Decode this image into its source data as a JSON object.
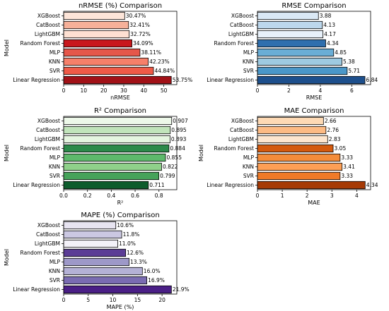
{
  "chart_data": [
    {
      "type": "bar",
      "orientation": "horizontal",
      "title": "nRMSE (%) Comparison",
      "xlabel": "nRMSE",
      "ylabel": "Model",
      "categories": [
        "XGBoost",
        "CatBoost",
        "LightGBM",
        "Random Forest",
        "MLP",
        "KNN",
        "SVR",
        "Linear Regression"
      ],
      "values": [
        30.47,
        32.41,
        32.72,
        34.09,
        38.11,
        42.23,
        44.84,
        53.75
      ],
      "value_labels": [
        "30.47%",
        "32.41%",
        "32.72%",
        "34.09%",
        "38.11%",
        "42.23%",
        "44.84%",
        "53.75%"
      ],
      "colors": [
        "#fde5d9",
        "#f6b099",
        "#fee0d2",
        "#c8181d",
        "#e5574a",
        "#f6806a",
        "#ef5a47",
        "#a11117"
      ],
      "xlim": [
        0,
        56.5
      ],
      "xticks": [
        0,
        10,
        20,
        30,
        40,
        50
      ],
      "xtick_labels": [
        "0",
        "10",
        "20",
        "30",
        "40",
        "50"
      ]
    },
    {
      "type": "bar",
      "orientation": "horizontal",
      "title": "RMSE Comparison",
      "xlabel": "RMSE",
      "ylabel": "",
      "categories": [
        "XGBoost",
        "CatBoost",
        "LightGBM",
        "Random Forest",
        "MLP",
        "KNN",
        "SVR",
        "Linear Regression"
      ],
      "values": [
        3.88,
        4.13,
        4.17,
        4.34,
        4.85,
        5.38,
        5.71,
        6.84
      ],
      "value_labels": [
        "3.88",
        "4.13",
        "4.17",
        "4.34",
        "4.85",
        "5.38",
        "5.71",
        "6.84"
      ],
      "colors": [
        "#dae8f5",
        "#bcd7ec",
        "#e8f1fa",
        "#2f6fae",
        "#6aaed6",
        "#9ecae1",
        "#4a97c9",
        "#1d4f8c"
      ],
      "xlim": [
        0,
        7.2
      ],
      "xticks": [
        0,
        2,
        4,
        6
      ],
      "xtick_labels": [
        "0",
        "2",
        "4",
        "6"
      ]
    },
    {
      "type": "bar",
      "orientation": "horizontal",
      "title": "R² Comparison",
      "xlabel": "R²",
      "ylabel": "Model",
      "categories": [
        "XGBoost",
        "CatBoost",
        "LightGBM",
        "Random Forest",
        "MLP",
        "KNN",
        "SVR",
        "Linear Regression"
      ],
      "values": [
        0.907,
        0.895,
        0.893,
        0.884,
        0.855,
        0.822,
        0.799,
        0.711
      ],
      "value_labels": [
        "0.907",
        "0.895",
        "0.893",
        "0.884",
        "0.855",
        "0.822",
        "0.799",
        "0.711"
      ],
      "colors": [
        "#edf8e9",
        "#c1e4bb",
        "#e5f5e0",
        "#2c8a4a",
        "#5db96b",
        "#8fd08a",
        "#46a35a",
        "#0d5c2c"
      ],
      "xlim": [
        0,
        0.95
      ],
      "xticks": [
        0,
        0.2,
        0.4,
        0.6,
        0.8
      ],
      "xtick_labels": [
        "0.0",
        "0.2",
        "0.4",
        "0.6",
        "0.8"
      ]
    },
    {
      "type": "bar",
      "orientation": "horizontal",
      "title": "MAE Comparison",
      "xlabel": "MAE",
      "ylabel": "Model",
      "categories": [
        "XGBoost",
        "CatBoost",
        "LightGBM",
        "Random Forest",
        "MLP",
        "KNN",
        "SVR",
        "Linear Regression"
      ],
      "values": [
        2.66,
        2.76,
        2.83,
        3.05,
        3.33,
        3.41,
        3.33,
        4.34
      ],
      "value_labels": [
        "2.66",
        "2.76",
        "2.83",
        "3.05",
        "3.33",
        "3.41",
        "3.33",
        "4.34"
      ],
      "colors": [
        "#fdd9b4",
        "#fdbb84",
        "#fee6ce",
        "#d45a0e",
        "#f48c3a",
        "#fd9f55",
        "#f07a27",
        "#a63a05"
      ],
      "xlim": [
        0,
        4.56
      ],
      "xticks": [
        0,
        1,
        2,
        3,
        4
      ],
      "xtick_labels": [
        "0",
        "1",
        "2",
        "3",
        "4"
      ]
    },
    {
      "type": "bar",
      "orientation": "horizontal",
      "title": "MAPE (%) Comparison",
      "xlabel": "MAPE (%)",
      "ylabel": "Model",
      "categories": [
        "XGBoost",
        "CatBoost",
        "LightGBM",
        "Random Forest",
        "MLP",
        "KNN",
        "SVR",
        "Linear Regression"
      ],
      "values": [
        10.6,
        11.8,
        11.0,
        12.6,
        13.3,
        16.0,
        16.9,
        21.9
      ],
      "value_labels": [
        "10.6%",
        "11.8%",
        "11.0%",
        "12.6%",
        "13.3%",
        "16.0%",
        "16.9%",
        "21.9%"
      ],
      "colors": [
        "#e7e4f1",
        "#cbc8e2",
        "#f3f1f8",
        "#5b3d96",
        "#9d98c8",
        "#b4b1d6",
        "#7a6cb2",
        "#4a1f86"
      ],
      "xlim": [
        0,
        23.0
      ],
      "xticks": [
        0,
        5,
        10,
        15,
        20
      ],
      "xtick_labels": [
        "0",
        "5",
        "10",
        "15",
        "20"
      ]
    }
  ]
}
